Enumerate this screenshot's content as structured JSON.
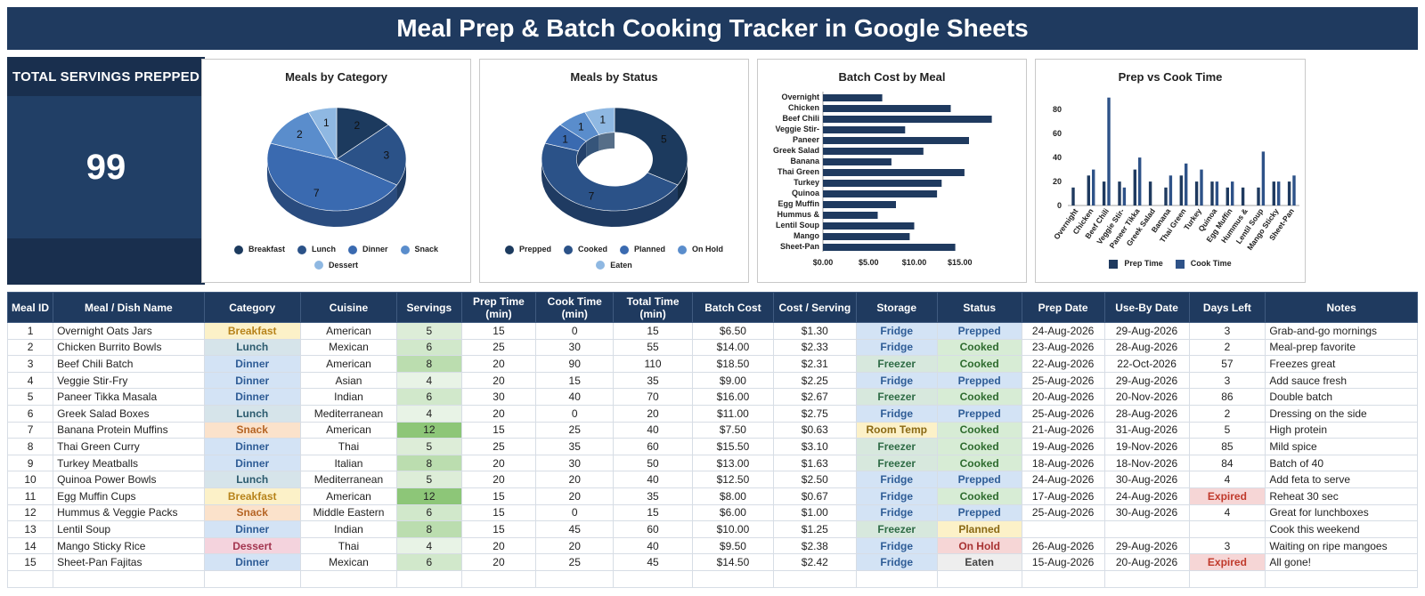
{
  "title": "Meal Prep & Batch Cooking Tracker in Google Sheets",
  "kpi": {
    "label": "TOTAL SERVINGS PREPPED",
    "value": "99"
  },
  "colors": {
    "navy": "#1f3a5f",
    "pie": [
      "#1c3a5e",
      "#2b5288",
      "#3a6ab0",
      "#5a8dcc",
      "#8fb8e2"
    ],
    "bar": "#1f3a5f"
  },
  "charts": [
    {
      "type": "pie",
      "title": "Meals by Category",
      "labels": [
        "Breakfast",
        "Lunch",
        "Dinner",
        "Snack",
        "Dessert"
      ],
      "values": [
        2,
        3,
        7,
        2,
        1
      ]
    },
    {
      "type": "donut",
      "title": "Meals by Status",
      "labels": [
        "Prepped",
        "Cooked",
        "Planned",
        "On Hold",
        "Eaten"
      ],
      "values": [
        5,
        7,
        1,
        1,
        1
      ]
    },
    {
      "type": "bar",
      "title": "Batch Cost by Meal",
      "categories": [
        "Overnight",
        "Chicken",
        "Beef Chili",
        "Veggie Stir-",
        "Paneer",
        "Greek Salad",
        "Banana",
        "Thai Green",
        "Turkey",
        "Quinoa",
        "Egg Muffin",
        "Hummus &",
        "Lentil Soup",
        "Mango",
        "Sheet-Pan"
      ],
      "values": [
        6.5,
        14,
        18.5,
        9,
        16,
        11,
        7.5,
        15.5,
        13,
        12.5,
        8,
        6,
        10,
        9.5,
        14.5
      ],
      "xticks": [
        "$0.00",
        "$5.00",
        "$10.00",
        "$15.00"
      ],
      "xlim": [
        0,
        20
      ]
    },
    {
      "type": "grouped-bar",
      "title": "Prep vs Cook Time",
      "categories": [
        "Overnight",
        "Chicken",
        "Beef Chili",
        "Veggie Stir-",
        "Paneer Tikka",
        "Greek Salad",
        "Banana",
        "Thai Green",
        "Turkey",
        "Quinoa",
        "Egg Muffin",
        "Hummus &",
        "Lentil Soup",
        "Mango Sticky",
        "Sheet-Pan"
      ],
      "series": [
        {
          "name": "Prep Time",
          "values": [
            15,
            25,
            20,
            20,
            30,
            20,
            15,
            25,
            20,
            20,
            15,
            15,
            15,
            20,
            20
          ]
        },
        {
          "name": "Cook Time",
          "values": [
            0,
            30,
            90,
            15,
            40,
            0,
            25,
            35,
            30,
            20,
            20,
            0,
            45,
            20,
            25
          ]
        }
      ],
      "yticks": [
        "0",
        "20",
        "40",
        "60",
        "80"
      ],
      "ylim": [
        0,
        95
      ]
    }
  ],
  "table": {
    "headers": [
      "Meal ID",
      "Meal / Dish Name",
      "Category",
      "Cuisine",
      "Servings",
      "Prep Time (min)",
      "Cook Time (min)",
      "Total Time (min)",
      "Batch Cost",
      "Cost / Serving",
      "Storage",
      "Status",
      "Prep Date",
      "Use-By Date",
      "Days Left",
      "Notes"
    ],
    "rows": [
      [
        "1",
        "Overnight Oats Jars",
        "Breakfast",
        "American",
        "5",
        "15",
        "0",
        "15",
        "$6.50",
        "$1.30",
        "Fridge",
        "Prepped",
        "24-Aug-2026",
        "29-Aug-2026",
        "3",
        "Grab-and-go mornings"
      ],
      [
        "2",
        "Chicken Burrito Bowls",
        "Lunch",
        "Mexican",
        "6",
        "25",
        "30",
        "55",
        "$14.00",
        "$2.33",
        "Fridge",
        "Cooked",
        "23-Aug-2026",
        "28-Aug-2026",
        "2",
        "Meal-prep favorite"
      ],
      [
        "3",
        "Beef Chili Batch",
        "Dinner",
        "American",
        "8",
        "20",
        "90",
        "110",
        "$18.50",
        "$2.31",
        "Freezer",
        "Cooked",
        "22-Aug-2026",
        "22-Oct-2026",
        "57",
        "Freezes great"
      ],
      [
        "4",
        "Veggie Stir-Fry",
        "Dinner",
        "Asian",
        "4",
        "20",
        "15",
        "35",
        "$9.00",
        "$2.25",
        "Fridge",
        "Prepped",
        "25-Aug-2026",
        "29-Aug-2026",
        "3",
        "Add sauce fresh"
      ],
      [
        "5",
        "Paneer Tikka Masala",
        "Dinner",
        "Indian",
        "6",
        "30",
        "40",
        "70",
        "$16.00",
        "$2.67",
        "Freezer",
        "Cooked",
        "20-Aug-2026",
        "20-Nov-2026",
        "86",
        "Double batch"
      ],
      [
        "6",
        "Greek Salad Boxes",
        "Lunch",
        "Mediterranean",
        "4",
        "20",
        "0",
        "20",
        "$11.00",
        "$2.75",
        "Fridge",
        "Prepped",
        "25-Aug-2026",
        "28-Aug-2026",
        "2",
        "Dressing on the side"
      ],
      [
        "7",
        "Banana Protein Muffins",
        "Snack",
        "American",
        "12",
        "15",
        "25",
        "40",
        "$7.50",
        "$0.63",
        "Room Temp",
        "Cooked",
        "21-Aug-2026",
        "31-Aug-2026",
        "5",
        "High protein"
      ],
      [
        "8",
        "Thai Green Curry",
        "Dinner",
        "Thai",
        "5",
        "25",
        "35",
        "60",
        "$15.50",
        "$3.10",
        "Freezer",
        "Cooked",
        "19-Aug-2026",
        "19-Nov-2026",
        "85",
        "Mild spice"
      ],
      [
        "9",
        "Turkey Meatballs",
        "Dinner",
        "Italian",
        "8",
        "20",
        "30",
        "50",
        "$13.00",
        "$1.63",
        "Freezer",
        "Cooked",
        "18-Aug-2026",
        "18-Nov-2026",
        "84",
        "Batch of 40"
      ],
      [
        "10",
        "Quinoa Power Bowls",
        "Lunch",
        "Mediterranean",
        "5",
        "20",
        "20",
        "40",
        "$12.50",
        "$2.50",
        "Fridge",
        "Prepped",
        "24-Aug-2026",
        "30-Aug-2026",
        "4",
        "Add feta to serve"
      ],
      [
        "11",
        "Egg Muffin Cups",
        "Breakfast",
        "American",
        "12",
        "15",
        "20",
        "35",
        "$8.00",
        "$0.67",
        "Fridge",
        "Cooked",
        "17-Aug-2026",
        "24-Aug-2026",
        "Expired",
        "Reheat 30 sec"
      ],
      [
        "12",
        "Hummus & Veggie Packs",
        "Snack",
        "Middle Eastern",
        "6",
        "15",
        "0",
        "15",
        "$6.00",
        "$1.00",
        "Fridge",
        "Prepped",
        "25-Aug-2026",
        "30-Aug-2026",
        "4",
        "Great for lunchboxes"
      ],
      [
        "13",
        "Lentil Soup",
        "Dinner",
        "Indian",
        "8",
        "15",
        "45",
        "60",
        "$10.00",
        "$1.25",
        "Freezer",
        "Planned",
        "",
        "",
        "",
        "Cook this weekend"
      ],
      [
        "14",
        "Mango Sticky Rice",
        "Dessert",
        "Thai",
        "4",
        "20",
        "20",
        "40",
        "$9.50",
        "$2.38",
        "Fridge",
        "On Hold",
        "26-Aug-2026",
        "29-Aug-2026",
        "3",
        "Waiting on ripe mangoes"
      ],
      [
        "15",
        "Sheet-Pan Fajitas",
        "Dinner",
        "Mexican",
        "6",
        "20",
        "25",
        "45",
        "$14.50",
        "$2.42",
        "Fridge",
        "Eaten",
        "15-Aug-2026",
        "20-Aug-2026",
        "Expired",
        "All gone!"
      ]
    ]
  }
}
